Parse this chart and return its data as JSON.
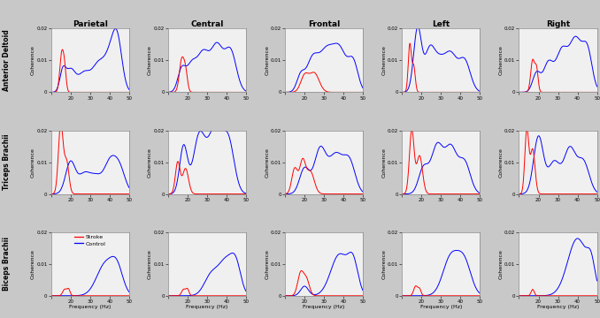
{
  "col_labels": [
    "Parietal",
    "Central",
    "Frontal",
    "Left",
    "Right"
  ],
  "row_labels": [
    "Anterior Deltoid",
    "Triceps Brachii",
    "Biceps Brachii"
  ],
  "xlabel": "Frequency (Hz)",
  "ylabel": "Coherence",
  "xlim": [
    10,
    50
  ],
  "ylim_all": [
    0,
    0.02
  ],
  "xtick_labels": [
    "",
    "20",
    "30",
    "40",
    "50"
  ],
  "ytick_labels": [
    "0",
    "0.01",
    "0.02"
  ],
  "stroke_color": "#FF0000",
  "control_color": "#0000FF",
  "legend_stroke": "Stroke",
  "legend_control": "Control",
  "background_color": "#c8c8c8",
  "plot_bg": "#f0f0f0"
}
